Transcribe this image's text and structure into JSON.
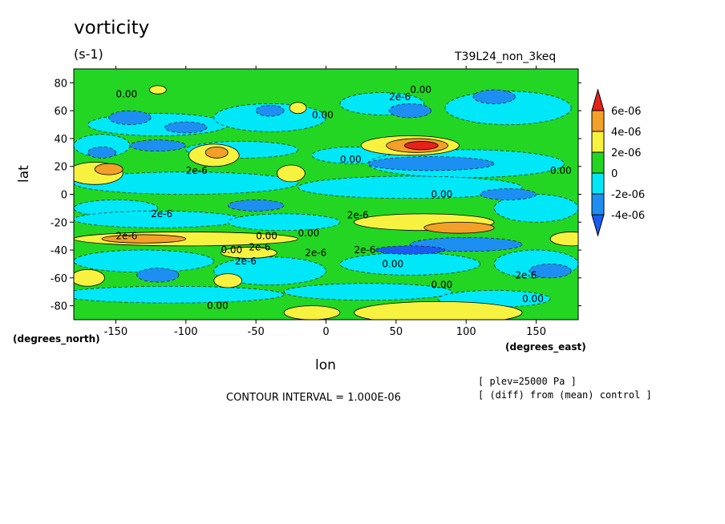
{
  "title": "vorticity",
  "units": "(s-1)",
  "run_label": "T39L24_non_3keq",
  "plev_note": "[ plev=25000 Pa ]",
  "diff_note": "[ (diff) from (mean) control ]",
  "contour_interval": "CONTOUR INTERVAL = 1.000E-06",
  "chart_data": {
    "type": "heatmap",
    "title": "vorticity",
    "subtitle": "(s-1)",
    "xlabel": "lon",
    "ylabel": "lat",
    "x_units": "(degrees_east)",
    "y_units": "(degrees_north)",
    "xlim": [
      -180,
      180
    ],
    "ylim": [
      -90,
      90
    ],
    "x_ticks": [
      -150,
      -100,
      -50,
      0,
      50,
      100,
      150
    ],
    "y_ticks": [
      80,
      60,
      40,
      20,
      0,
      -20,
      -40,
      -60,
      -80
    ],
    "colorbar": {
      "labels": [
        "6e-06",
        "4e-06",
        "2e-06",
        "0",
        "-2e-06",
        "-4e-06"
      ],
      "colors": [
        "#e8201c",
        "#f3a02a",
        "#f7f240",
        "#22d623",
        "#00e8f7",
        "#1d8ff2",
        "#1a5cf0"
      ]
    },
    "contour_labels": [
      "0.00",
      "0.00",
      "0.00",
      "2e-6",
      "0.00",
      "2e-6",
      "0.00",
      "2e-6",
      "2e-6",
      "0.00",
      "2e-6",
      "0.00",
      "0.00",
      "0.00",
      "2e-6",
      "2e-6",
      "2e-6",
      "0.00",
      "0.00",
      "2e-6",
      "0.00",
      "0.00",
      "2e-6"
    ],
    "fields": {
      "lat_bands": [
        {
          "lat": 85,
          "sign": "+",
          "note": "polar north weak positive"
        },
        {
          "lat": 35,
          "sign": "+",
          "max_lon": 65,
          "max_value": 6e-06
        },
        {
          "lat": 25,
          "sign": "-",
          "lon_range": [
            20,
            150
          ],
          "min_value": -4e-06
        },
        {
          "lat": 15,
          "sign": "+",
          "lon_range": [
            -180,
            -130
          ],
          "max_value": 4e-06
        },
        {
          "lat": -20,
          "sign": "+",
          "lon_range": [
            10,
            120
          ],
          "max_value": 4e-06
        },
        {
          "lat": -32,
          "sign": "+",
          "lon_range": [
            -180,
            -40
          ],
          "max_value": 4e-06
        },
        {
          "lat": -38,
          "sign": "-",
          "lon_range": [
            40,
            120
          ],
          "min_value": -4e-06
        },
        {
          "lat": -85,
          "sign": "+",
          "note": "polar south positive"
        }
      ]
    }
  }
}
